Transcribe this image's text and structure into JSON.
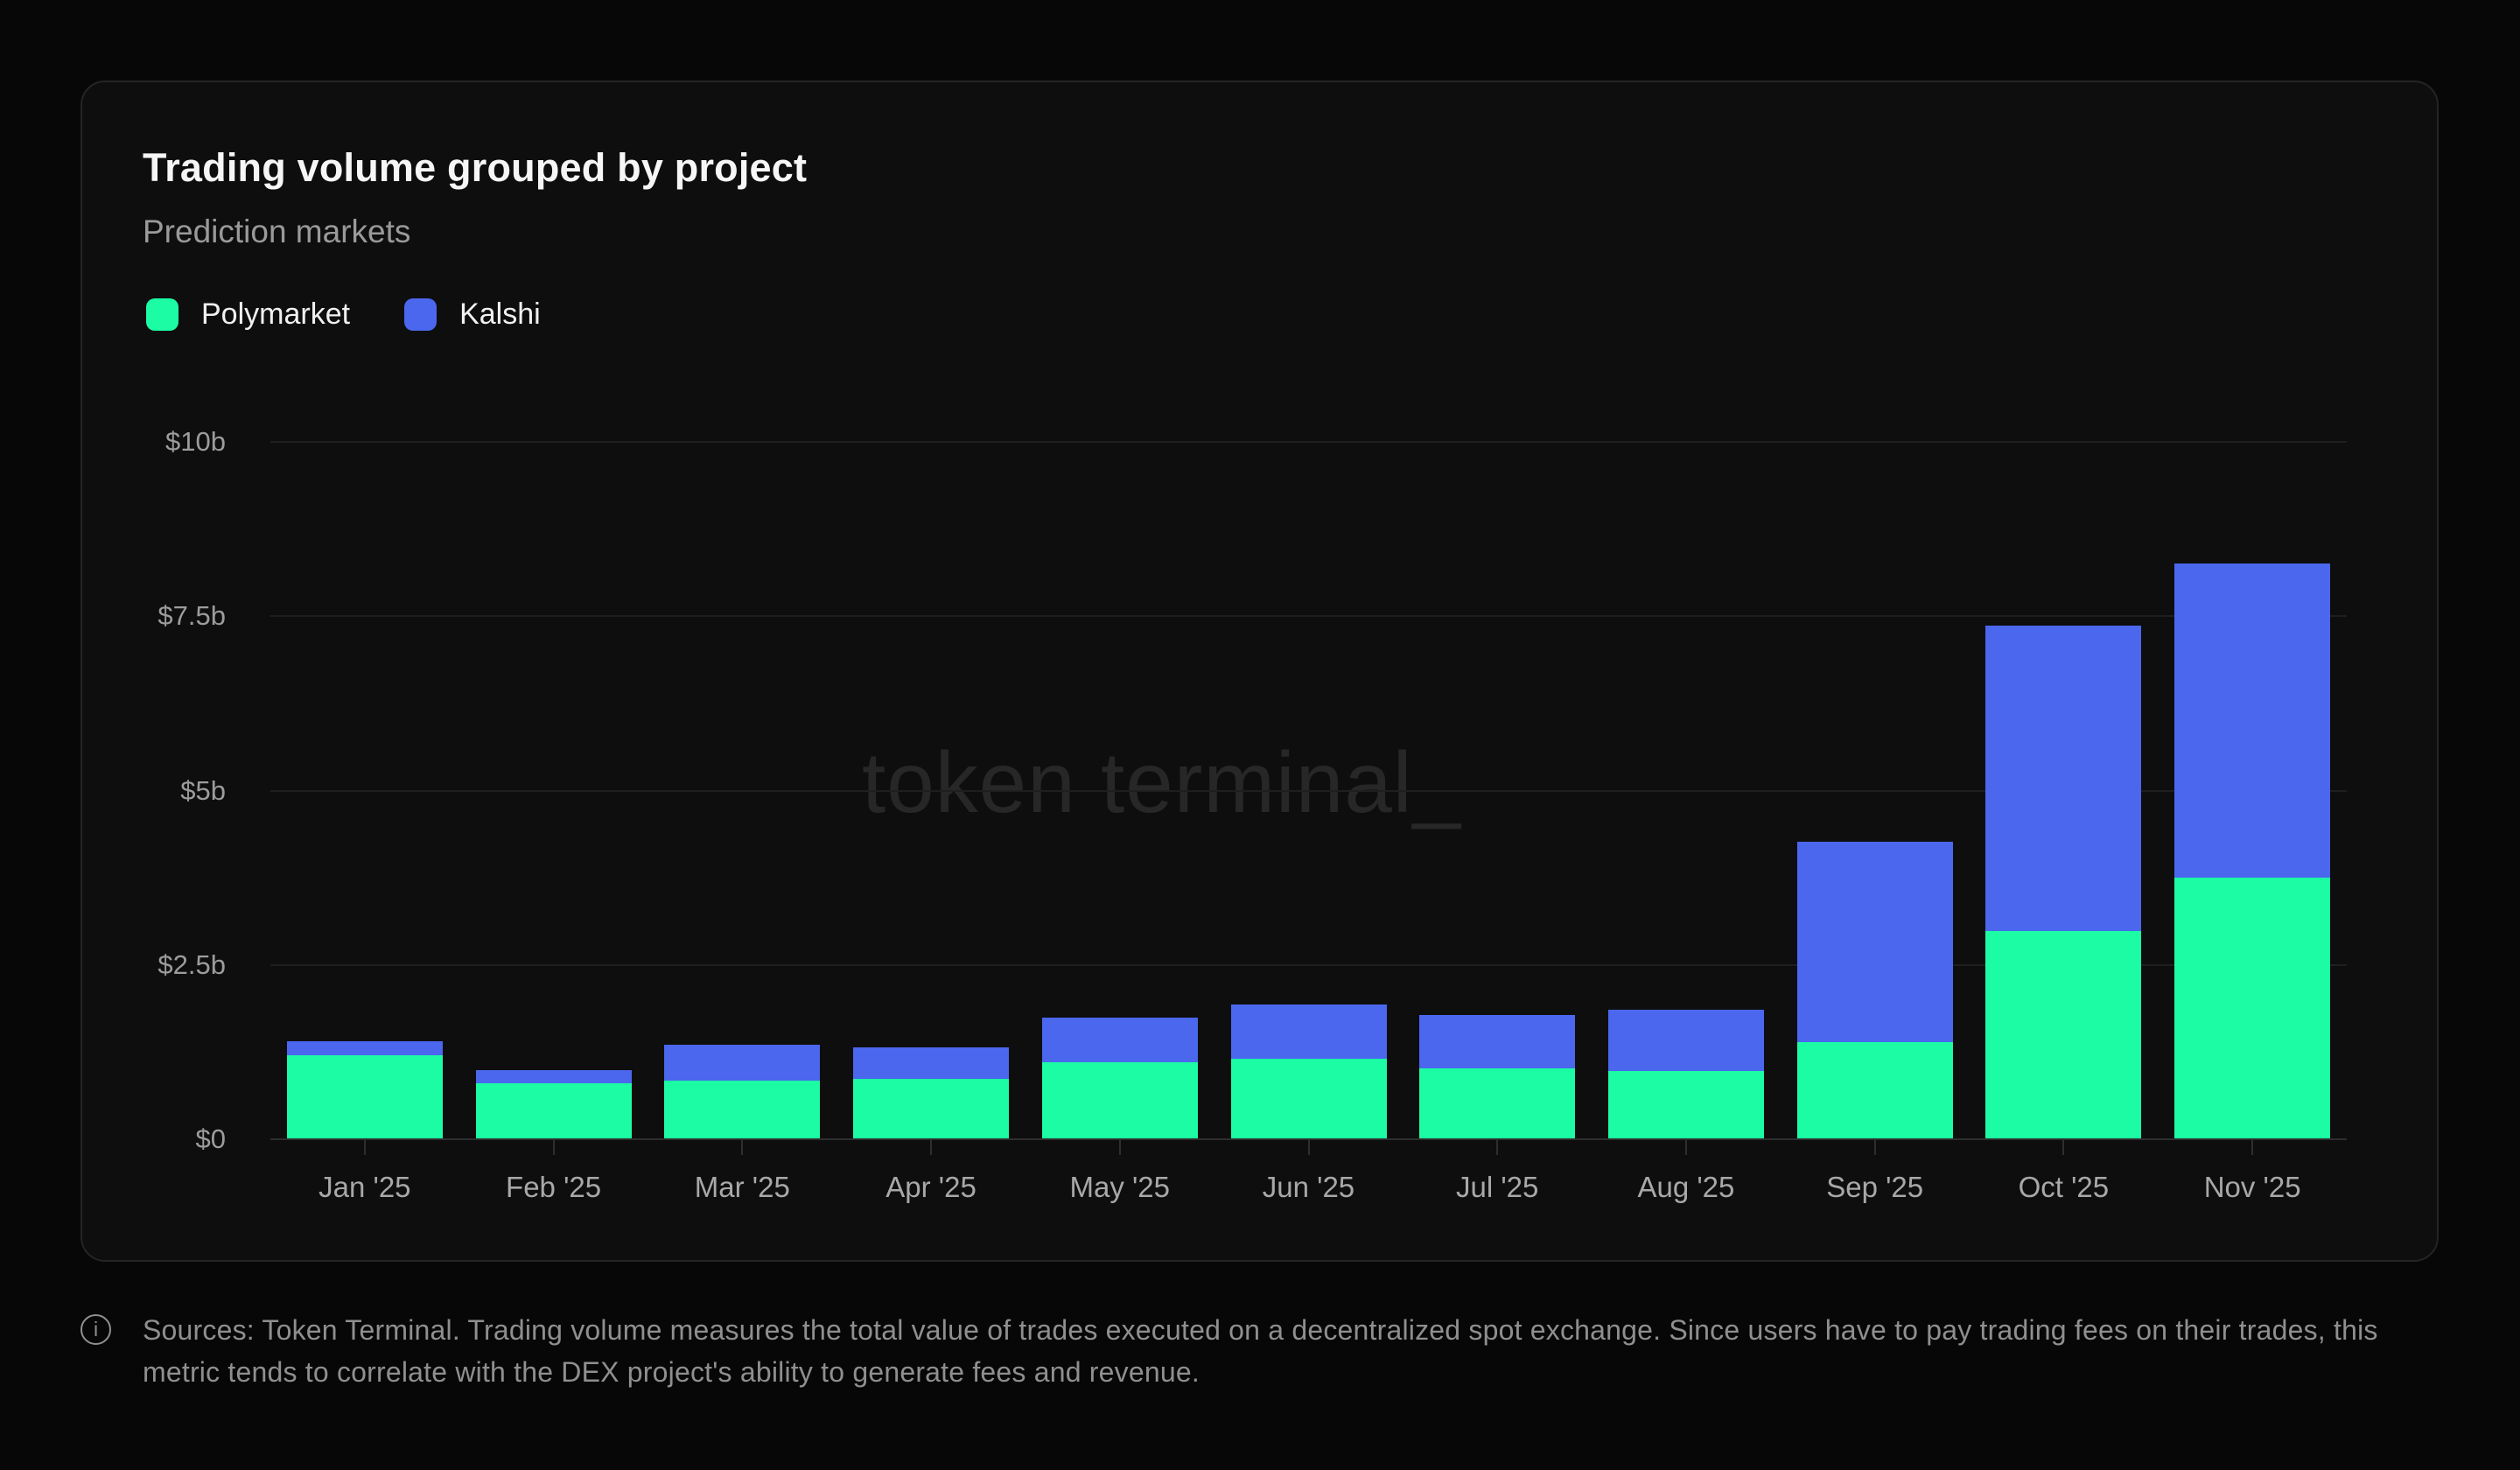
{
  "card": {
    "title": "Trading volume grouped by project",
    "subtitle": "Prediction markets"
  },
  "legend": [
    {
      "label": "Polymarket",
      "color": "#1cfca4"
    },
    {
      "label": "Kalshi",
      "color": "#4a67ee"
    }
  ],
  "watermark": "token terminal_",
  "footer": {
    "info_icon": "i",
    "text": "Sources: Token Terminal. Trading volume measures the total value of trades executed on a decentralized spot exchange. Since users have to pay trading fees on their trades, this metric tends to correlate with the DEX project's ability to generate fees and revenue."
  },
  "chart_data": {
    "type": "bar",
    "stacked": true,
    "title": "Trading volume grouped by project",
    "subtitle": "Prediction markets",
    "unit": "billions USD",
    "categories": [
      "Jan '25",
      "Feb '25",
      "Mar '25",
      "Apr '25",
      "May '25",
      "Jun '25",
      "Jul '25",
      "Aug '25",
      "Sep '25",
      "Oct '25",
      "Nov '25"
    ],
    "series": [
      {
        "name": "Polymarket",
        "color": "#1cfca4",
        "values": [
          1.21,
          0.8,
          0.84,
          0.87,
          1.1,
          1.15,
          1.02,
          0.98,
          1.39,
          2.99,
          3.75
        ]
      },
      {
        "name": "Kalshi",
        "color": "#4a67ee",
        "values": [
          0.2,
          0.19,
          0.52,
          0.45,
          0.64,
          0.78,
          0.76,
          0.88,
          2.87,
          4.38,
          4.51
        ]
      }
    ],
    "totals": [
      1.41,
      0.99,
      1.36,
      1.32,
      1.74,
      1.93,
      1.78,
      1.86,
      4.26,
      7.37,
      8.26
    ],
    "ylim": [
      0,
      10
    ],
    "y_ticks": [
      "$10b",
      "$7.5b",
      "$5b",
      "$2.5b",
      "$0"
    ],
    "y_tick_values": [
      10,
      7.5,
      5,
      2.5,
      0
    ],
    "grid": "horizontal",
    "legend_position": "top-left"
  }
}
